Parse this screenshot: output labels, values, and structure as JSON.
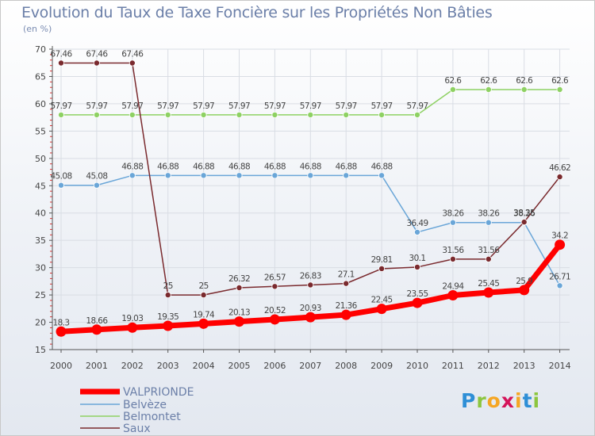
{
  "page": {
    "title": "Evolution du Taux de Taxe Foncière sur les Propriétés Non Bâties",
    "unit": "(en %)"
  },
  "logo": {
    "letters": [
      "P",
      "r",
      "o",
      "x",
      "i",
      "t",
      "i"
    ],
    "colors": [
      "#2e8fd6",
      "#8cc63f",
      "#f5a623",
      "#d4145a",
      "#f5a623",
      "#2e8fd6",
      "#8cc63f"
    ]
  },
  "chart_data": {
    "type": "line",
    "x": [
      "2000",
      "2001",
      "2002",
      "2003",
      "2004",
      "2005",
      "2006",
      "2007",
      "2008",
      "2009",
      "2010",
      "2011",
      "2012",
      "2013",
      "2014"
    ],
    "ylim": [
      15,
      70
    ],
    "yticks": [
      15,
      20,
      25,
      30,
      35,
      40,
      45,
      50,
      55,
      60,
      65,
      70
    ],
    "series": [
      {
        "name": "VALPRIONDE",
        "color": "#ff0000",
        "values": [
          18.3,
          18.66,
          19.03,
          19.35,
          19.74,
          20.13,
          20.52,
          20.93,
          21.36,
          22.45,
          23.55,
          24.94,
          25.45,
          25.9,
          34.2
        ],
        "labels": [
          "18.3",
          "18.66",
          "19.03",
          "19.35",
          "19.74",
          "20.13",
          "20.52",
          "20.93",
          "21.36",
          "22.45",
          "23.55",
          "24.94",
          "25.45",
          "25.9",
          "34.2"
        ]
      },
      {
        "name": "Belvèze",
        "color": "#6aa6d8",
        "values": [
          45.08,
          45.08,
          46.88,
          46.88,
          46.88,
          46.88,
          46.88,
          46.88,
          46.88,
          46.88,
          36.49,
          38.26,
          38.26,
          38.26,
          26.71
        ],
        "labels": [
          "45.08",
          "45.08",
          "46.88",
          "46.88",
          "46.88",
          "46.88",
          "46.88",
          "46.88",
          "46.88",
          "46.88",
          "36.49",
          "38.26",
          "38.26",
          "38.26",
          "26.71"
        ]
      },
      {
        "name": "Belmontet",
        "color": "#8ed163",
        "values": [
          57.97,
          57.97,
          57.97,
          57.97,
          57.97,
          57.97,
          57.97,
          57.97,
          57.97,
          57.97,
          57.97,
          62.6,
          62.6,
          62.6,
          62.6
        ],
        "labels": [
          "57.97",
          "57.97",
          "57.97",
          "57.97",
          "57.97",
          "57.97",
          "57.97",
          "57.97",
          "57.97",
          "57.97",
          "57.97",
          "62.6",
          "62.6",
          "62.6",
          "62.6"
        ]
      },
      {
        "name": "Saux",
        "color": "#7a2a2e",
        "values": [
          67.46,
          67.46,
          67.46,
          25,
          25,
          26.32,
          26.57,
          26.83,
          27.1,
          29.81,
          30.1,
          31.56,
          31.56,
          38.35,
          46.62
        ],
        "labels": [
          "67.46",
          "67.46",
          "67.46",
          "25",
          "25",
          "26.32",
          "26.57",
          "26.83",
          "27.1",
          "29.81",
          "30.1",
          "31.56",
          "31.56",
          "38.35",
          "46.62"
        ]
      }
    ]
  }
}
